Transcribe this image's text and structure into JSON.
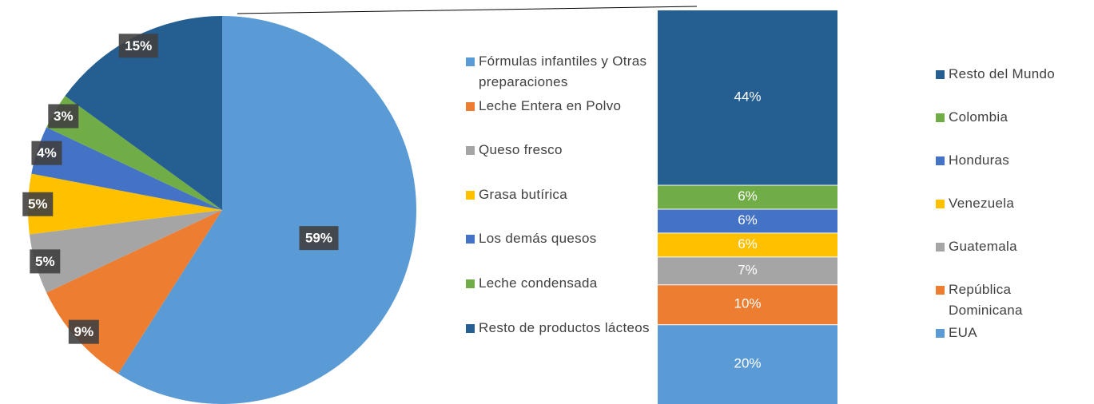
{
  "chart_data": [
    {
      "type": "pie",
      "categories": [
        "Fórmulas infantiles y Otras preparaciones",
        "Leche Entera en Polvo",
        "Queso fresco",
        "Grasa butírica",
        "Los demás quesos",
        "Leche condensada",
        "Resto de productos lácteos"
      ],
      "values": [
        59,
        9,
        5,
        5,
        4,
        3,
        15
      ],
      "value_labels": [
        "59%",
        "9%",
        "5%",
        "5%",
        "4%",
        "3%",
        "15%"
      ],
      "colors": [
        "#5b9bd5",
        "#ed7d31",
        "#a5a5a5",
        "#ffc000",
        "#4472c4",
        "#70ad47",
        "#255e91"
      ]
    },
    {
      "type": "stacked-bar",
      "series": [
        {
          "name": "EUA",
          "color": "#5b9bd5",
          "values": [
            20
          ],
          "value_labels": [
            "20%"
          ]
        },
        {
          "name": "República Dominicana",
          "color": "#ed7d31",
          "values": [
            10
          ],
          "value_labels": [
            "10%"
          ]
        },
        {
          "name": "Guatemala",
          "color": "#a5a5a5",
          "values": [
            7
          ],
          "value_labels": [
            "7%"
          ]
        },
        {
          "name": "Venezuela",
          "color": "#ffc000",
          "values": [
            6
          ],
          "value_labels": [
            "6%"
          ]
        },
        {
          "name": "Honduras",
          "color": "#4472c4",
          "values": [
            6
          ],
          "value_labels": [
            "6%"
          ]
        },
        {
          "name": "Colombia",
          "color": "#70ad47",
          "values": [
            6
          ],
          "value_labels": [
            "6%"
          ]
        },
        {
          "name": "Resto del Mundo",
          "color": "#255e91",
          "values": [
            44
          ],
          "value_labels": [
            "44%"
          ]
        }
      ]
    }
  ]
}
